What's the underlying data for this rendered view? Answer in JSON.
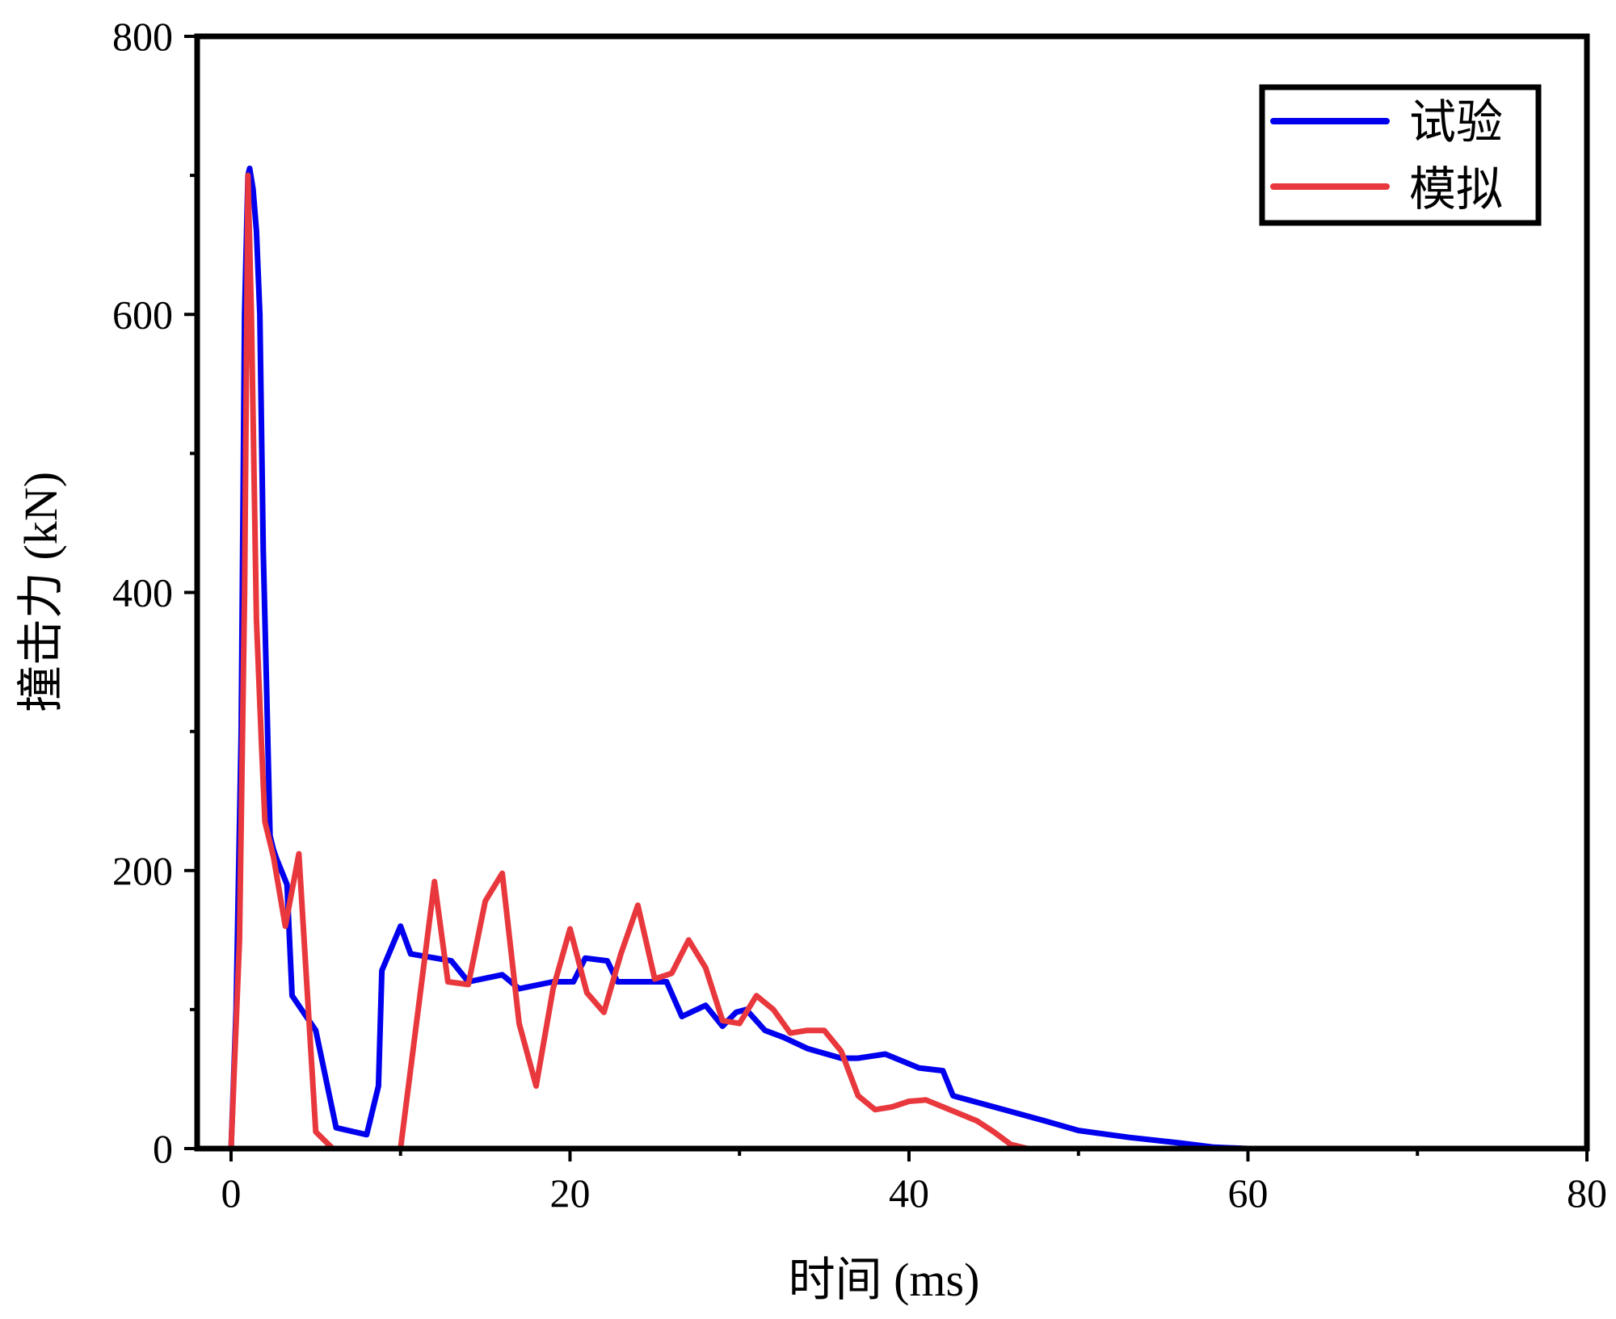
{
  "chart_data": {
    "type": "line",
    "title": "",
    "xlabel": "时间 (ms)",
    "ylabel": "撞击力 (kN)",
    "xlim": [
      -2,
      80
    ],
    "ylim": [
      0,
      800
    ],
    "x_ticks": [
      0,
      20,
      40,
      60,
      80
    ],
    "y_ticks": [
      0,
      200,
      400,
      600,
      800
    ],
    "x_minor_ticks": [
      10,
      30,
      50,
      70
    ],
    "y_minor_ticks": [
      100,
      300,
      500,
      700
    ],
    "grid": false,
    "legend_position": "top-right",
    "series": [
      {
        "name": "试验",
        "color": "#0000ee",
        "x": [
          0,
          0.3,
          0.6,
          0.8,
          1.0,
          1.1,
          1.3,
          1.5,
          1.7,
          1.9,
          2.1,
          2.3,
          2.5,
          2.7,
          3.3,
          3.6,
          5,
          6.2,
          8,
          8.7,
          8.9,
          10,
          10.6,
          13,
          14,
          16,
          17,
          19,
          20.2,
          20.9,
          22.2,
          22.8,
          24,
          25.7,
          26.6,
          28,
          29,
          29.8,
          30.4,
          31.5,
          32.6,
          34,
          36,
          37,
          38.6,
          40.6,
          42,
          42.6,
          45,
          48,
          50,
          53,
          56,
          58,
          60,
          65,
          70,
          80
        ],
        "y": [
          0,
          100,
          300,
          600,
          700,
          705,
          690,
          660,
          600,
          430,
          330,
          225,
          215,
          208,
          190,
          110,
          85,
          15,
          10,
          45,
          128,
          160,
          140,
          135,
          120,
          125,
          115,
          120,
          120,
          137,
          135,
          120,
          120,
          120,
          95,
          103,
          88,
          98,
          100,
          85,
          80,
          72,
          65,
          65,
          68,
          58,
          56,
          38,
          30,
          20,
          13,
          8,
          4,
          1,
          0,
          0,
          0,
          0
        ]
      },
      {
        "name": "模拟",
        "color": "#e8383d",
        "x": [
          0,
          0.5,
          0.8,
          1.0,
          1.2,
          1.5,
          1.8,
          2.0,
          2.5,
          3.2,
          4.0,
          5.0,
          6.0,
          8.0,
          10.0,
          12.0,
          12.8,
          14.0,
          15.0,
          16.0,
          17.0,
          18.0,
          19.0,
          20.0,
          21.0,
          22.0,
          23.0,
          24.0,
          25.0,
          26.0,
          27.0,
          28.0,
          29.0,
          30.0,
          31.0,
          32.0,
          33.0,
          34.0,
          35.0,
          36.0,
          37.0,
          38.0,
          39.0,
          40.0,
          41.0,
          42.0,
          43.0,
          44.0,
          45.0,
          46.0,
          47.0,
          50.0,
          60.0,
          70.0,
          80.0
        ],
        "y": [
          0,
          150,
          400,
          700,
          600,
          380,
          290,
          235,
          210,
          160,
          212,
          12,
          0,
          0,
          0,
          192,
          120,
          118,
          178,
          198,
          90,
          45,
          115,
          158,
          112,
          98,
          140,
          175,
          122,
          126,
          150,
          130,
          92,
          90,
          110,
          100,
          83,
          85,
          85,
          70,
          38,
          28,
          30,
          34,
          35,
          30,
          25,
          20,
          12,
          3,
          0,
          0,
          0,
          0,
          0
        ]
      }
    ]
  }
}
